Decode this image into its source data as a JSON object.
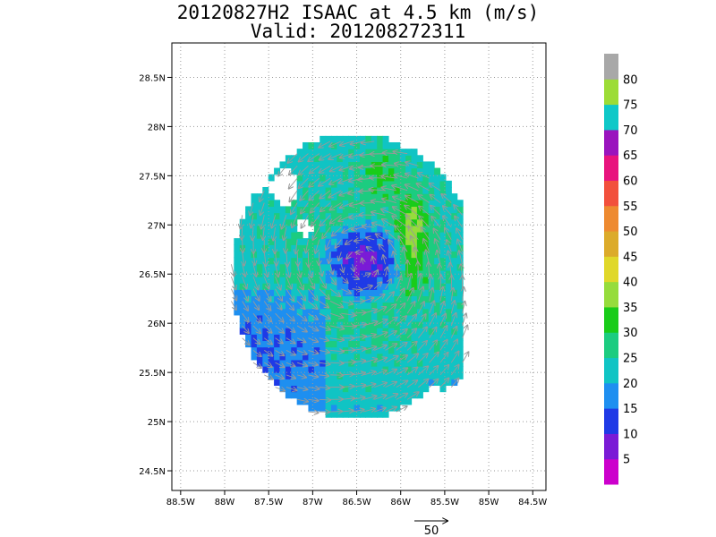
{
  "title": {
    "line1": "20120827H2 ISAAC at 4.5 km (m/s)",
    "line2": "Valid: 201208272311"
  },
  "chart_data": {
    "type": "heatmap",
    "title": "20120827H2 ISAAC at 4.5 km (m/s)",
    "subtitle": "Valid: 201208272311",
    "storm": "ISAAC",
    "altitude": "4.5 km",
    "units": "m/s",
    "valid_time": "201208272311",
    "x_ticks": [
      "88.5W",
      "88W",
      "87.5W",
      "87W",
      "86.5W",
      "86W",
      "85.5W",
      "85W",
      "84.5W"
    ],
    "y_ticks": [
      "24.5N",
      "25N",
      "25.5N",
      "26N",
      "26.5N",
      "27N",
      "27.5N",
      "28N",
      "28.5N"
    ],
    "xlim": [
      -88.6,
      -84.35
    ],
    "ylim": [
      24.3,
      28.85
    ],
    "grid": true,
    "wind_center": {
      "lon": -86.45,
      "lat": 26.6
    },
    "min_wind": {
      "lon": -86.45,
      "lat": 26.6,
      "value": 5
    },
    "max_wind_core": {
      "lon": -85.9,
      "lat": 26.6,
      "value": 38
    },
    "colorbar": {
      "labels": [
        "5",
        "10",
        "15",
        "20",
        "25",
        "30",
        "35",
        "40",
        "45",
        "50",
        "55",
        "60",
        "65",
        "70",
        "75",
        "80"
      ],
      "colors": [
        "#cc00cc",
        "#7a1bd6",
        "#1f3ae6",
        "#1e8ff0",
        "#10c4c4",
        "#1ccc80",
        "#19cc19",
        "#96dc3c",
        "#e0d82a",
        "#dcab2a",
        "#ee8a30",
        "#f2503c",
        "#e8147e",
        "#9a14be",
        "#0fc8c8",
        "#9cdc36",
        "#a8a8a8"
      ]
    },
    "vector_key": {
      "label": "50",
      "value": 50
    }
  }
}
